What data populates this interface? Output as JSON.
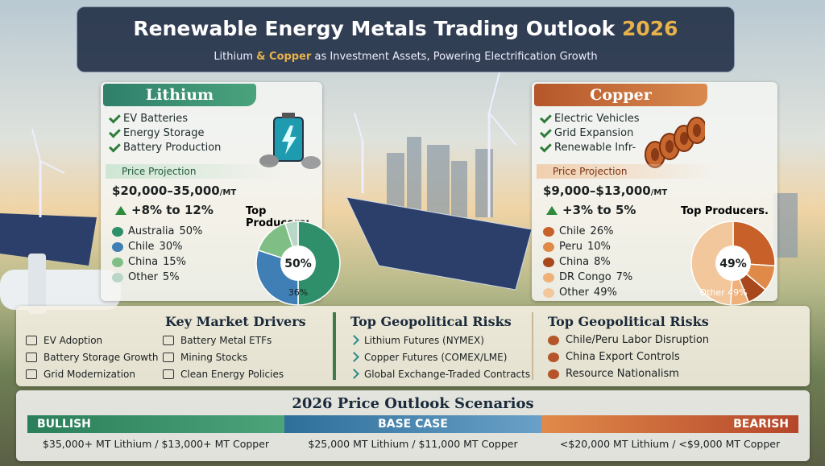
{
  "header": {
    "title_main": "Renewable Energy Metals Trading Outlook",
    "title_year": "2026",
    "subtitle_parts": [
      "Lithium",
      "& Copper",
      "as Investment Assets, Powering Electrification Growth"
    ]
  },
  "metals": [
    {
      "name": "Lithium",
      "uses": [
        "EV Batteries",
        "Energy Storage",
        "Battery Production"
      ],
      "price_label": "Price Projection",
      "price": "$20,000–35,000",
      "price_unit": "/MT",
      "growth": "+8% to 12%",
      "producers_title": "Top Producers:",
      "producers": [
        {
          "name": "Australia",
          "value": 50,
          "label": "50%",
          "color": "#2f8f6a"
        },
        {
          "name": "Chile",
          "value": 30,
          "label": "30%",
          "color": "#3f7fb5"
        },
        {
          "name": "China",
          "value": 15,
          "label": "15%",
          "color": "#7fbf86"
        },
        {
          "name": "Other",
          "value": 5,
          "label": "5%",
          "color": "#b9d7c6"
        }
      ],
      "pie_center": "50%",
      "pie_note": "36%"
    },
    {
      "name": "Copper",
      "uses": [
        "Electric Vehicles",
        "Grid Expansion",
        "Renewable Infr-"
      ],
      "price_label": "Price Projection",
      "price": "$9,000–$13,000",
      "price_unit": "/MT",
      "growth": "+3% to 5%",
      "producers_title": "Top Producers.",
      "producers": [
        {
          "name": "Chile",
          "value": 26,
          "label": "26%",
          "color": "#c8602a"
        },
        {
          "name": "Peru",
          "value": 10,
          "label": "10%",
          "color": "#e08a4a"
        },
        {
          "name": "China",
          "value": 8,
          "label": "8%",
          "color": "#a8481c"
        },
        {
          "name": "DR Congo",
          "value": 7,
          "label": "7%",
          "color": "#efb07a"
        },
        {
          "name": "Other",
          "value": 49,
          "label": "49%",
          "color": "#f3c79c"
        }
      ],
      "pie_center": "49%",
      "pie_note": "Other 49%"
    }
  ],
  "drivers": {
    "title": "Key Market Drivers",
    "items": [
      "EV Adoption",
      "Battery Storage Growth",
      "Grid Modernization",
      "Battery Metal ETFs",
      "Mining Stocks",
      "Clean Energy Policies"
    ]
  },
  "instruments": {
    "title": "Top Geopolitical Risks",
    "items": [
      "Lithium Futures (NYMEX)",
      "Copper Futures (COMEX/LME)",
      "Global Exchange-Traded Contracts"
    ]
  },
  "risks": {
    "title": "Top Geopolitical Risks",
    "items": [
      "Chile/Peru Labor Disruption",
      "China Export Controls",
      "Resource Nationalism"
    ]
  },
  "scenarios": {
    "title": "2026 Price Outlook Scenarios",
    "items": [
      {
        "name": "BULLISH",
        "text": "$35,000+ MT Lithium / $13,000+ MT Copper"
      },
      {
        "name": "BASE CASE",
        "text": "$25,000 MT Lithium / $11,000 MT Copper"
      },
      {
        "name": "BEARISH",
        "text": "<$20,000 MT Lithium / <$9,000 MT Copper"
      }
    ]
  }
}
